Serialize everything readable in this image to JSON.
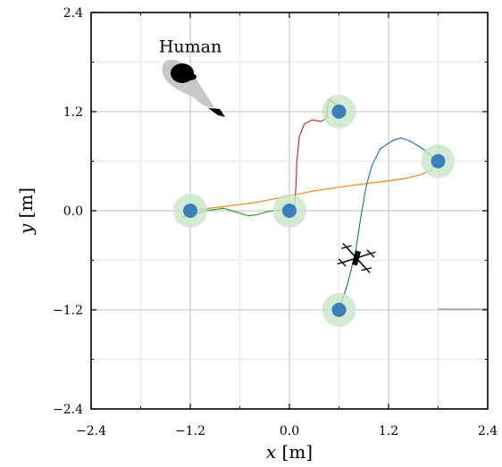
{
  "chart_data": {
    "type": "line",
    "title": "",
    "xlabel": "x [m]",
    "ylabel": "y [m]",
    "xlabel_var": "x",
    "ylabel_var": "y",
    "label_unit": " [m]",
    "xlim": [
      -2.4,
      2.4
    ],
    "ylim": [
      -2.4,
      2.4
    ],
    "grid": true,
    "x_ticks": [
      -2.4,
      -1.2,
      0.0,
      1.2,
      2.4
    ],
    "x_tick_labels": [
      "−2.4",
      "−1.2",
      "0.0",
      "1.2",
      "2.4"
    ],
    "y_ticks": [
      -2.4,
      -1.2,
      0.0,
      1.2,
      2.4
    ],
    "y_tick_labels": [
      "−2.4",
      "−1.2",
      "0.0",
      "1.2",
      "2.4"
    ],
    "minor_grid_step": 0.6,
    "waypoints": {
      "x": [
        -1.2,
        0.0,
        0.6,
        1.8,
        0.6
      ],
      "y": [
        0.0,
        0.0,
        1.2,
        0.6,
        -1.2
      ],
      "color": "#3a7fb8",
      "halo_color": "#c8e6c8"
    },
    "series": [
      {
        "color": "#ff7f0e",
        "x": [
          -1.2,
          -0.8,
          -0.4,
          0.0,
          0.3,
          0.7,
          1.1,
          1.4,
          1.6,
          1.72,
          1.8
        ],
        "y": [
          0.0,
          0.05,
          0.1,
          0.18,
          0.24,
          0.3,
          0.35,
          0.39,
          0.44,
          0.5,
          0.6
        ]
      },
      {
        "color": "#2ca02c",
        "x": [
          -1.3,
          -1.2,
          -1.0,
          -0.8,
          -0.6,
          -0.5,
          -0.4,
          -0.3,
          -0.2,
          -0.1,
          0.0
        ],
        "y": [
          -0.08,
          -0.05,
          0.0,
          0.03,
          -0.03,
          -0.06,
          -0.05,
          -0.02,
          0.0,
          0.01,
          0.0
        ]
      },
      {
        "color": "#d62728",
        "x": [
          0.0,
          0.06,
          0.08,
          0.09,
          0.12,
          0.18,
          0.28,
          0.38,
          0.45,
          0.46,
          0.48,
          0.52,
          0.6,
          0.68,
          0.6
        ],
        "y": [
          0.0,
          0.05,
          0.3,
          0.6,
          0.9,
          1.05,
          1.1,
          1.08,
          1.12,
          1.25,
          1.35,
          1.32,
          1.25,
          1.15,
          1.2
        ]
      },
      {
        "color": "#1f77b4",
        "x": [
          0.6,
          0.7,
          0.8,
          0.86,
          0.93,
          1.0,
          1.1,
          1.25,
          1.35,
          1.45,
          1.6,
          1.7,
          1.8
        ],
        "y": [
          -1.2,
          -0.9,
          -0.5,
          -0.1,
          0.3,
          0.55,
          0.75,
          0.85,
          0.88,
          0.85,
          0.76,
          0.68,
          0.6
        ]
      },
      {
        "color": "#999999",
        "x": [
          1.8,
          2.4
        ],
        "y": [
          -1.19,
          -1.19
        ]
      }
    ],
    "annotations": [
      {
        "text": "Human",
        "x": -1.58,
        "y": 1.92
      }
    ],
    "icons": [
      "human-icon",
      "drone-icon"
    ]
  }
}
